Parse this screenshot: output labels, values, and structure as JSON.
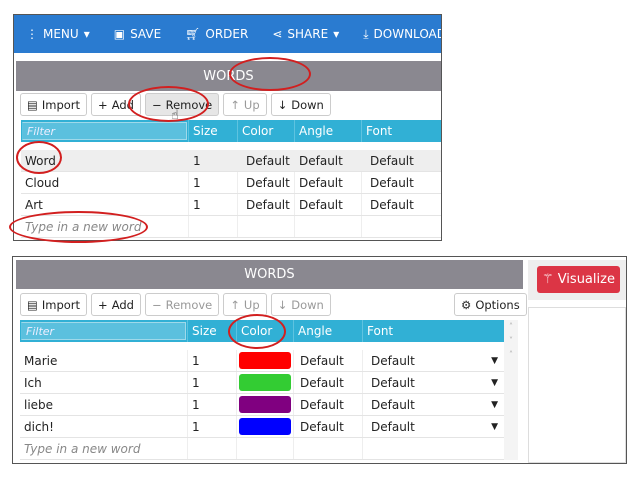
{
  "top": {
    "menu": [
      {
        "icon": "kebab-icon",
        "label": "MENU",
        "dropdown": true
      },
      {
        "icon": "save-icon",
        "label": "SAVE"
      },
      {
        "icon": "cart-icon",
        "label": "ORDER"
      },
      {
        "icon": "share-icon",
        "label": "SHARE",
        "dropdown": true
      },
      {
        "icon": "download-icon",
        "label": "DOWNLOAD"
      }
    ],
    "title": "WORDS",
    "toolbar": {
      "import": "Import",
      "add": "Add",
      "remove": "Remove",
      "up": "Up",
      "down": "Down"
    },
    "columns": {
      "filter": "Filter",
      "size": "Size",
      "color": "Color",
      "angle": "Angle",
      "font": "Font"
    },
    "rows": [
      {
        "word": "Word",
        "size": "1",
        "color": "Default",
        "angle": "Default",
        "font": "Default"
      },
      {
        "word": "Cloud",
        "size": "1",
        "color": "Default",
        "angle": "Default",
        "font": "Default"
      },
      {
        "word": "Art",
        "size": "1",
        "color": "Default",
        "angle": "Default",
        "font": "Default"
      }
    ],
    "new_word_placeholder": "Type in a new word"
  },
  "bottom": {
    "title": "WORDS",
    "toolbar": {
      "import": "Import",
      "add": "Add",
      "remove": "Remove",
      "up": "Up",
      "down": "Down",
      "options": "Options"
    },
    "columns": {
      "filter": "Filter",
      "size": "Size",
      "color": "Color",
      "angle": "Angle",
      "font": "Font"
    },
    "rows": [
      {
        "word": "Marie",
        "size": "1",
        "color": "#ff0000",
        "angle": "Default",
        "font": "Default"
      },
      {
        "word": "Ich",
        "size": "1",
        "color": "#33cc33",
        "angle": "Default",
        "font": "Default"
      },
      {
        "word": "liebe",
        "size": "1",
        "color": "#800080",
        "angle": "Default",
        "font": "Default"
      },
      {
        "word": "dich!",
        "size": "1",
        "color": "#0000ff",
        "angle": "Default",
        "font": "Default"
      }
    ],
    "new_word_placeholder": "Type in a new word",
    "visualize": "Visualize"
  },
  "colors": {
    "nav": "#2a7bd0",
    "header": "#31b0d5",
    "visualize": "#dc3545",
    "annotation": "#d21f1f"
  }
}
